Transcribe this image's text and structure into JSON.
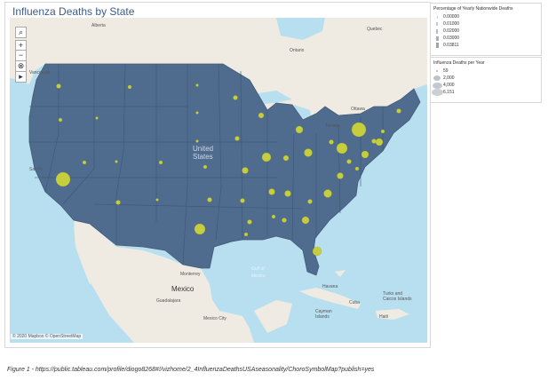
{
  "title": "Influenza Deaths by State",
  "controls": {
    "search_icon": "search-icon",
    "zoom_in": "+",
    "zoom_out": "−",
    "lasso_icon": "lasso-icon",
    "expand_icon": "▸"
  },
  "map_labels": {
    "alberta": "Alberta",
    "quebec": "Quebec",
    "ontario": "Ontario",
    "vancouver": "Vancouver",
    "ottawa": "Ottawa",
    "toronto": "Toronto",
    "united": "United",
    "states": "States",
    "san_fr": "San Fr",
    "gulf1": "Gulf of",
    "gulf2": "Mexico",
    "mexico": "Mexico",
    "monterrey": "Monterrey",
    "guadalajara": "Guadalajara",
    "mexico_city": "Mexico City",
    "cuba": "Cuba",
    "haiti": "Haiti",
    "turks": "Turks and",
    "caicos": "Caicos Islands",
    "cayman": "Cayman",
    "islands": "Islands",
    "havana": "Havana"
  },
  "attribution": "© 2020 Mapbox © OpenStreetMap",
  "legend_pct": {
    "title": "Percentage of Yearly Nationwide Deaths",
    "items": [
      "0.00000",
      "0.01000",
      "0.02000",
      "0.03000",
      "0.03811"
    ]
  },
  "legend_deaths": {
    "title": "Influenza Deaths per Year",
    "items": [
      "59",
      "2,000",
      "4,000",
      "6,151"
    ]
  },
  "colors": {
    "land": "#efebe3",
    "water": "#b8dff0",
    "us_fill": "#4f6b8d",
    "bubble": "#c6ce3e"
  },
  "caption": "Figure   1 - https://public.tableau.com/profile/diogo8268#!/vizhome/2_4InfluenzaDeathsUSAseasonality/ChoroSymbolMap?publish=yes"
}
